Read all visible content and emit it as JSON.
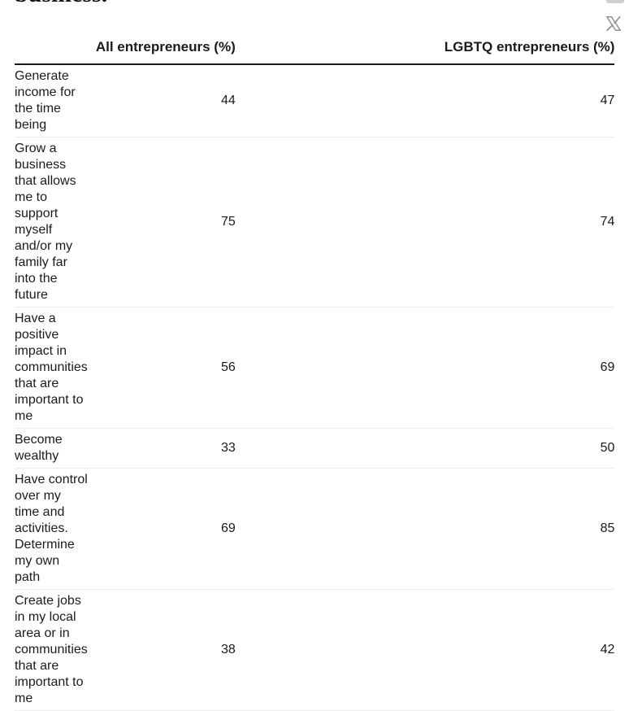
{
  "title_fragment": "business.",
  "table": {
    "headers": [
      "",
      "All entrepreneurs (%)",
      "LGBTQ entrepreneurs (%)"
    ],
    "rows": [
      {
        "label": "Generate income for the time being",
        "all": "44",
        "lgbtq": "47"
      },
      {
        "label": "Grow a business that allows me to support myself and/or my family far into the future",
        "all": "75",
        "lgbtq": "74"
      },
      {
        "label": "Have a positive impact in communities that are important to me",
        "all": "56",
        "lgbtq": "69"
      },
      {
        "label": "Become wealthy",
        "all": "33",
        "lgbtq": "50"
      },
      {
        "label": "Have control over my time and activities. Determine my own path",
        "all": "69",
        "lgbtq": "85"
      },
      {
        "label": "Create jobs in my local area or in communities that are important to me",
        "all": "38",
        "lgbtq": "42"
      }
    ]
  },
  "icons": {
    "share_x": "x-logo-icon"
  },
  "colors": {
    "text": "#1b1b1b",
    "rule": "#1b1b1b",
    "row_divider": "#ececec",
    "icon": "#8f8f8f"
  }
}
